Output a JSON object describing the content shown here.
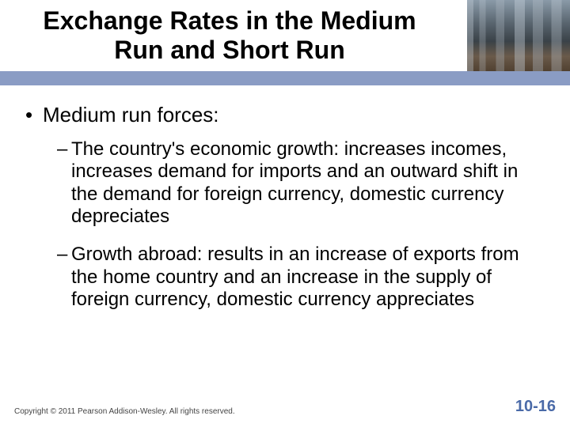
{
  "header": {
    "title": "Exchange Rates in the Medium Run and Short Run",
    "bar_color": "#8a9cc4"
  },
  "content": {
    "bullet1": "Medium run forces:",
    "sub1": "The country's economic growth: increases incomes, increases demand for imports and an outward shift in the demand for foreign currency, domestic currency depreciates",
    "sub2": "Growth abroad: results in an increase of exports from the home country and an increase in the supply of foreign currency, domestic currency appreciates"
  },
  "footer": {
    "copyright": "Copyright © 2011 Pearson Addison-Wesley. All rights reserved.",
    "pagenum": "10-16",
    "pagenum_color": "#4a6aa8"
  }
}
